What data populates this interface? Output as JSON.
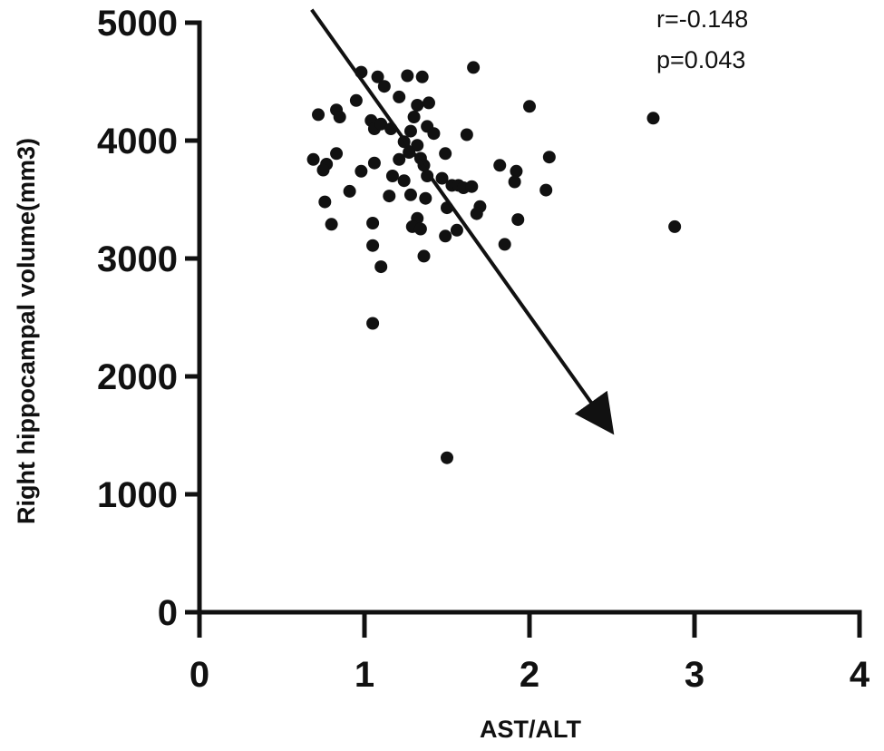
{
  "chart_data": {
    "type": "scatter",
    "xlabel": "AST/ALT",
    "ylabel": "Right hippocampal volume(mm3)",
    "xlim": [
      0,
      4
    ],
    "ylim": [
      0,
      5000
    ],
    "x_ticks": [
      0,
      1,
      2,
      3,
      4
    ],
    "y_ticks": [
      0,
      1000,
      2000,
      3000,
      4000,
      5000
    ],
    "x_tick_labels": [
      "0",
      "1",
      "2",
      "3",
      "4"
    ],
    "y_tick_labels": [
      "0",
      "1000",
      "2000",
      "3000",
      "4000",
      "5000"
    ],
    "grid": false,
    "annotations": {
      "r": "r=-0.148",
      "p": "p=0.043"
    },
    "trend_arrow": {
      "from": [
        0.68,
        5110
      ],
      "to": [
        2.5,
        1530
      ],
      "meaning": "negative correlation direction"
    },
    "points": [
      [
        0.98,
        4580
      ],
      [
        1.08,
        4540
      ],
      [
        1.26,
        4550
      ],
      [
        1.35,
        4540
      ],
      [
        1.66,
        4620
      ],
      [
        0.95,
        4340
      ],
      [
        1.12,
        4460
      ],
      [
        1.21,
        4370
      ],
      [
        1.32,
        4300
      ],
      [
        1.39,
        4320
      ],
      [
        0.72,
        4220
      ],
      [
        0.83,
        4260
      ],
      [
        0.85,
        4200
      ],
      [
        1.04,
        4170
      ],
      [
        1.3,
        4200
      ],
      [
        2.0,
        4290
      ],
      [
        2.75,
        4190
      ],
      [
        1.06,
        4100
      ],
      [
        1.1,
        4140
      ],
      [
        1.16,
        4100
      ],
      [
        1.28,
        4080
      ],
      [
        1.38,
        4120
      ],
      [
        1.42,
        4060
      ],
      [
        1.62,
        4050
      ],
      [
        1.24,
        3990
      ],
      [
        1.32,
        3960
      ],
      [
        0.69,
        3840
      ],
      [
        0.77,
        3800
      ],
      [
        0.83,
        3890
      ],
      [
        1.06,
        3810
      ],
      [
        1.21,
        3840
      ],
      [
        1.27,
        3900
      ],
      [
        1.34,
        3850
      ],
      [
        1.49,
        3890
      ],
      [
        1.36,
        3790
      ],
      [
        0.75,
        3750
      ],
      [
        0.98,
        3740
      ],
      [
        1.17,
        3700
      ],
      [
        1.24,
        3660
      ],
      [
        1.38,
        3700
      ],
      [
        1.47,
        3680
      ],
      [
        1.82,
        3790
      ],
      [
        1.92,
        3740
      ],
      [
        2.12,
        3860
      ],
      [
        1.53,
        3620
      ],
      [
        1.57,
        3620
      ],
      [
        1.6,
        3600
      ],
      [
        1.65,
        3610
      ],
      [
        1.91,
        3650
      ],
      [
        2.1,
        3580
      ],
      [
        0.76,
        3480
      ],
      [
        0.91,
        3570
      ],
      [
        1.15,
        3530
      ],
      [
        1.28,
        3540
      ],
      [
        1.37,
        3510
      ],
      [
        1.5,
        3430
      ],
      [
        1.7,
        3440
      ],
      [
        1.68,
        3380
      ],
      [
        1.32,
        3340
      ],
      [
        0.8,
        3290
      ],
      [
        1.05,
        3300
      ],
      [
        1.29,
        3270
      ],
      [
        1.34,
        3250
      ],
      [
        1.56,
        3240
      ],
      [
        1.93,
        3330
      ],
      [
        2.88,
        3270
      ],
      [
        1.49,
        3190
      ],
      [
        1.05,
        3110
      ],
      [
        1.85,
        3120
      ],
      [
        1.36,
        3020
      ],
      [
        1.1,
        2930
      ],
      [
        1.05,
        2450
      ],
      [
        1.5,
        1310
      ]
    ]
  }
}
